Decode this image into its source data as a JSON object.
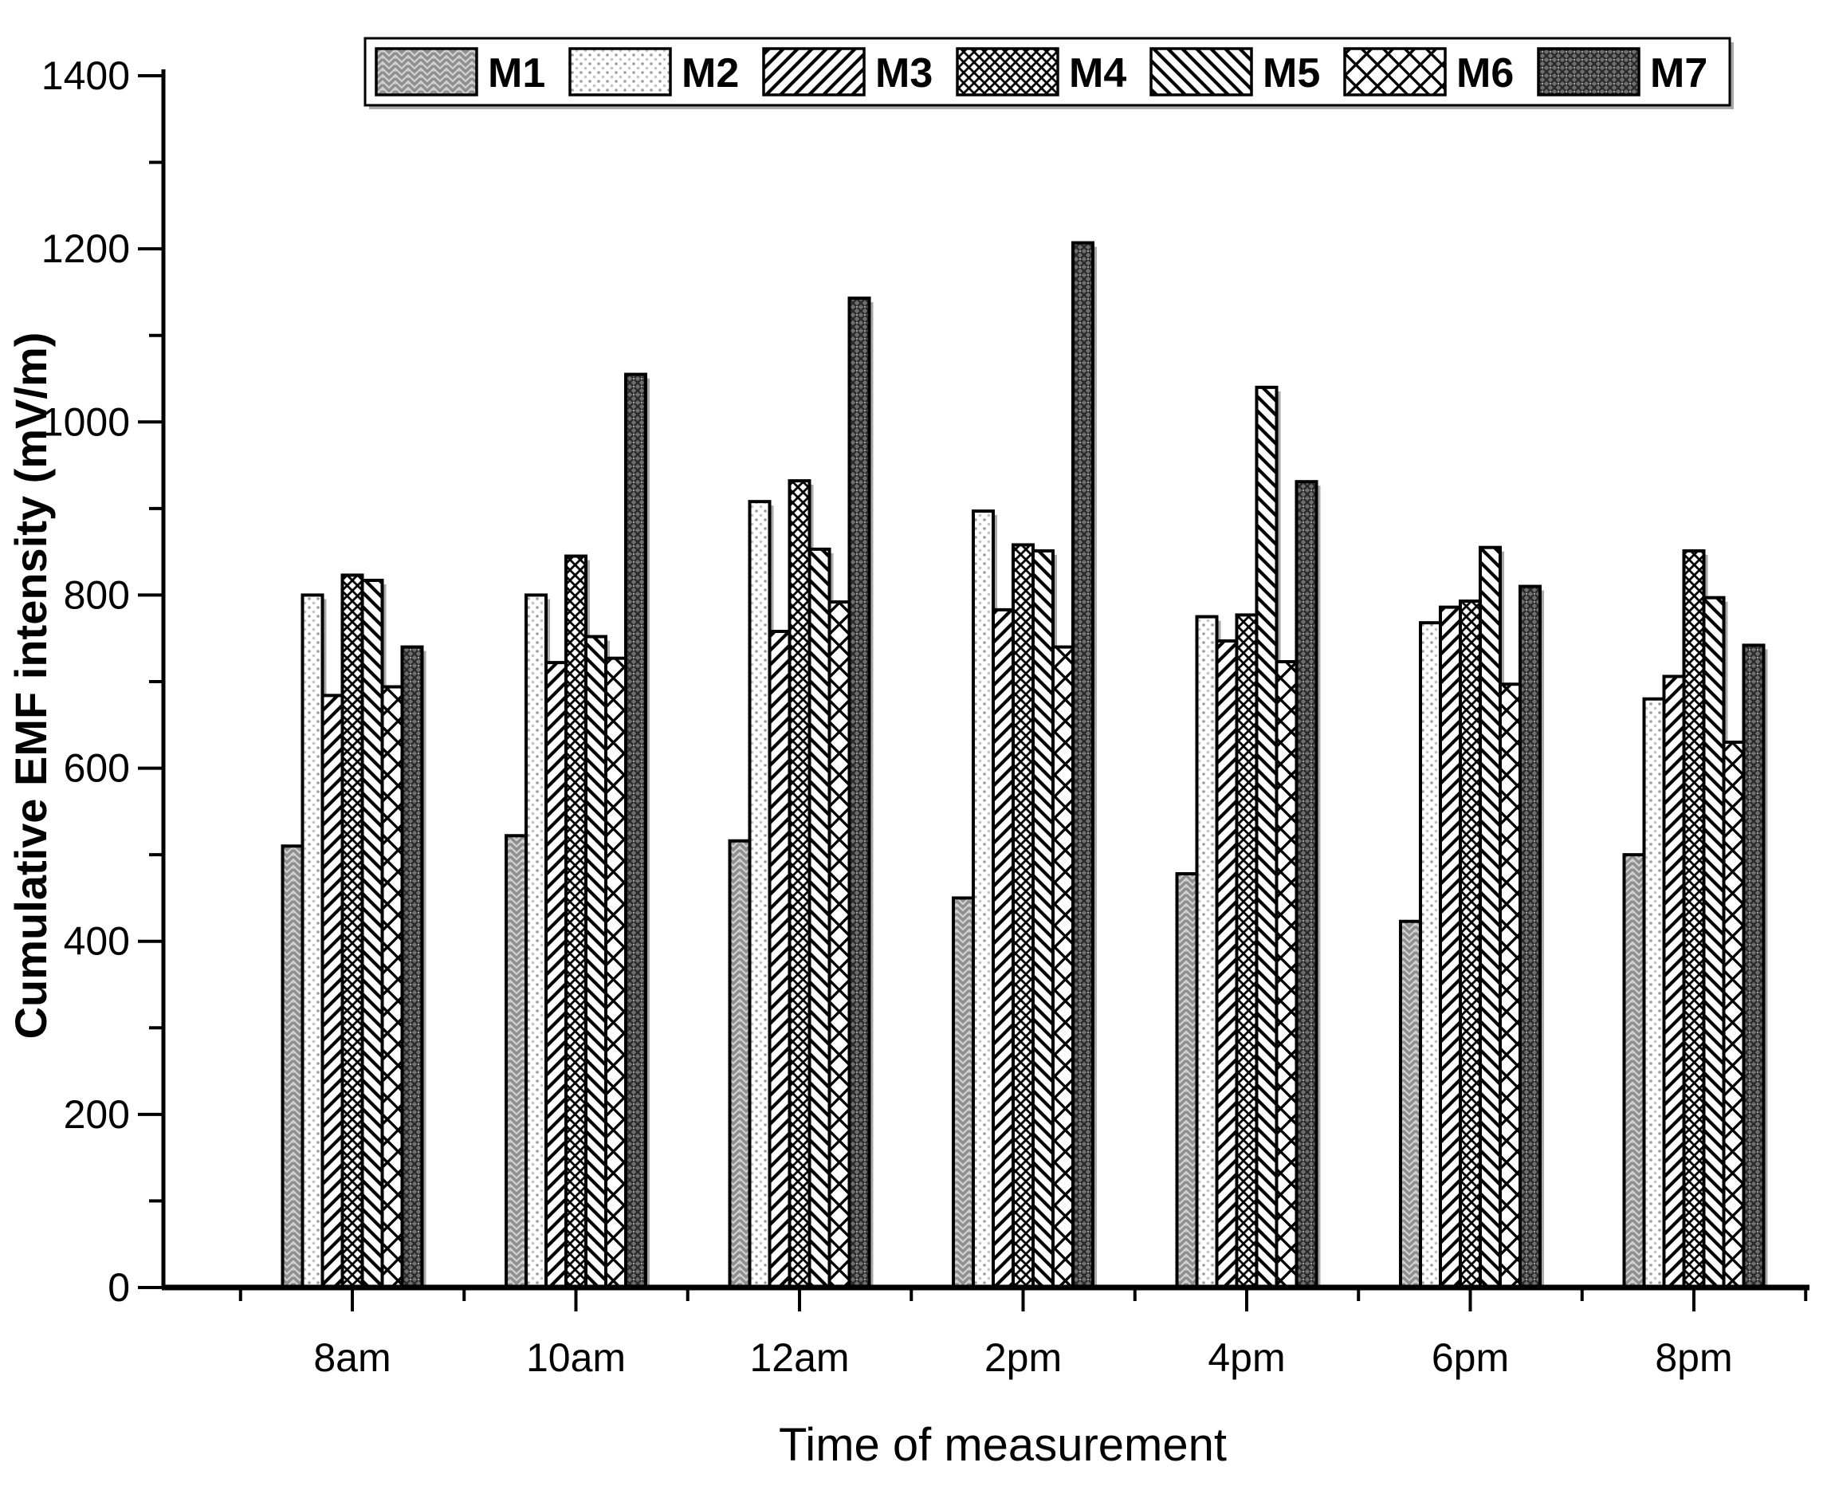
{
  "chart_data": {
    "type": "bar",
    "title": "",
    "xlabel": "Time of measurement",
    "ylabel": "Cumulative EMF intensity (mV/m)",
    "categories": [
      "8am",
      "10am",
      "12am",
      "2pm",
      "4pm",
      "6pm",
      "8pm"
    ],
    "series": [
      {
        "name": "M1",
        "pattern": "m1",
        "values": [
          510,
          522,
          516,
          450,
          478,
          423,
          500
        ]
      },
      {
        "name": "M2",
        "pattern": "m2",
        "values": [
          800,
          800,
          908,
          897,
          775,
          768,
          680
        ]
      },
      {
        "name": "M3",
        "pattern": "m3",
        "values": [
          684,
          722,
          758,
          783,
          747,
          786,
          706
        ]
      },
      {
        "name": "M4",
        "pattern": "m4",
        "values": [
          823,
          845,
          932,
          858,
          777,
          793,
          851
        ]
      },
      {
        "name": "M5",
        "pattern": "m5",
        "values": [
          817,
          752,
          853,
          851,
          1040,
          855,
          797
        ]
      },
      {
        "name": "M6",
        "pattern": "m6",
        "values": [
          694,
          727,
          792,
          740,
          723,
          697,
          630
        ]
      },
      {
        "name": "M7",
        "pattern": "m7",
        "values": [
          740,
          1055,
          1143,
          1207,
          931,
          810,
          742
        ]
      }
    ],
    "ylim": [
      0,
      1400
    ],
    "ytick_step": 200,
    "yminor_step": 100,
    "yticks": [
      0,
      200,
      400,
      600,
      800,
      1000,
      1200,
      1400
    ],
    "legend_position": "top",
    "grid": false,
    "colors": {
      "bar_outline": "#000000",
      "shadow": "#a9a9a9",
      "background": "#ffffff",
      "m1_base": "#d2d2d2",
      "m1_line": "#8f8f8f",
      "m2_dot": "#9c9c9c",
      "m7_base": "#6f6f6f",
      "m7_line": "#2b2b2b"
    }
  }
}
